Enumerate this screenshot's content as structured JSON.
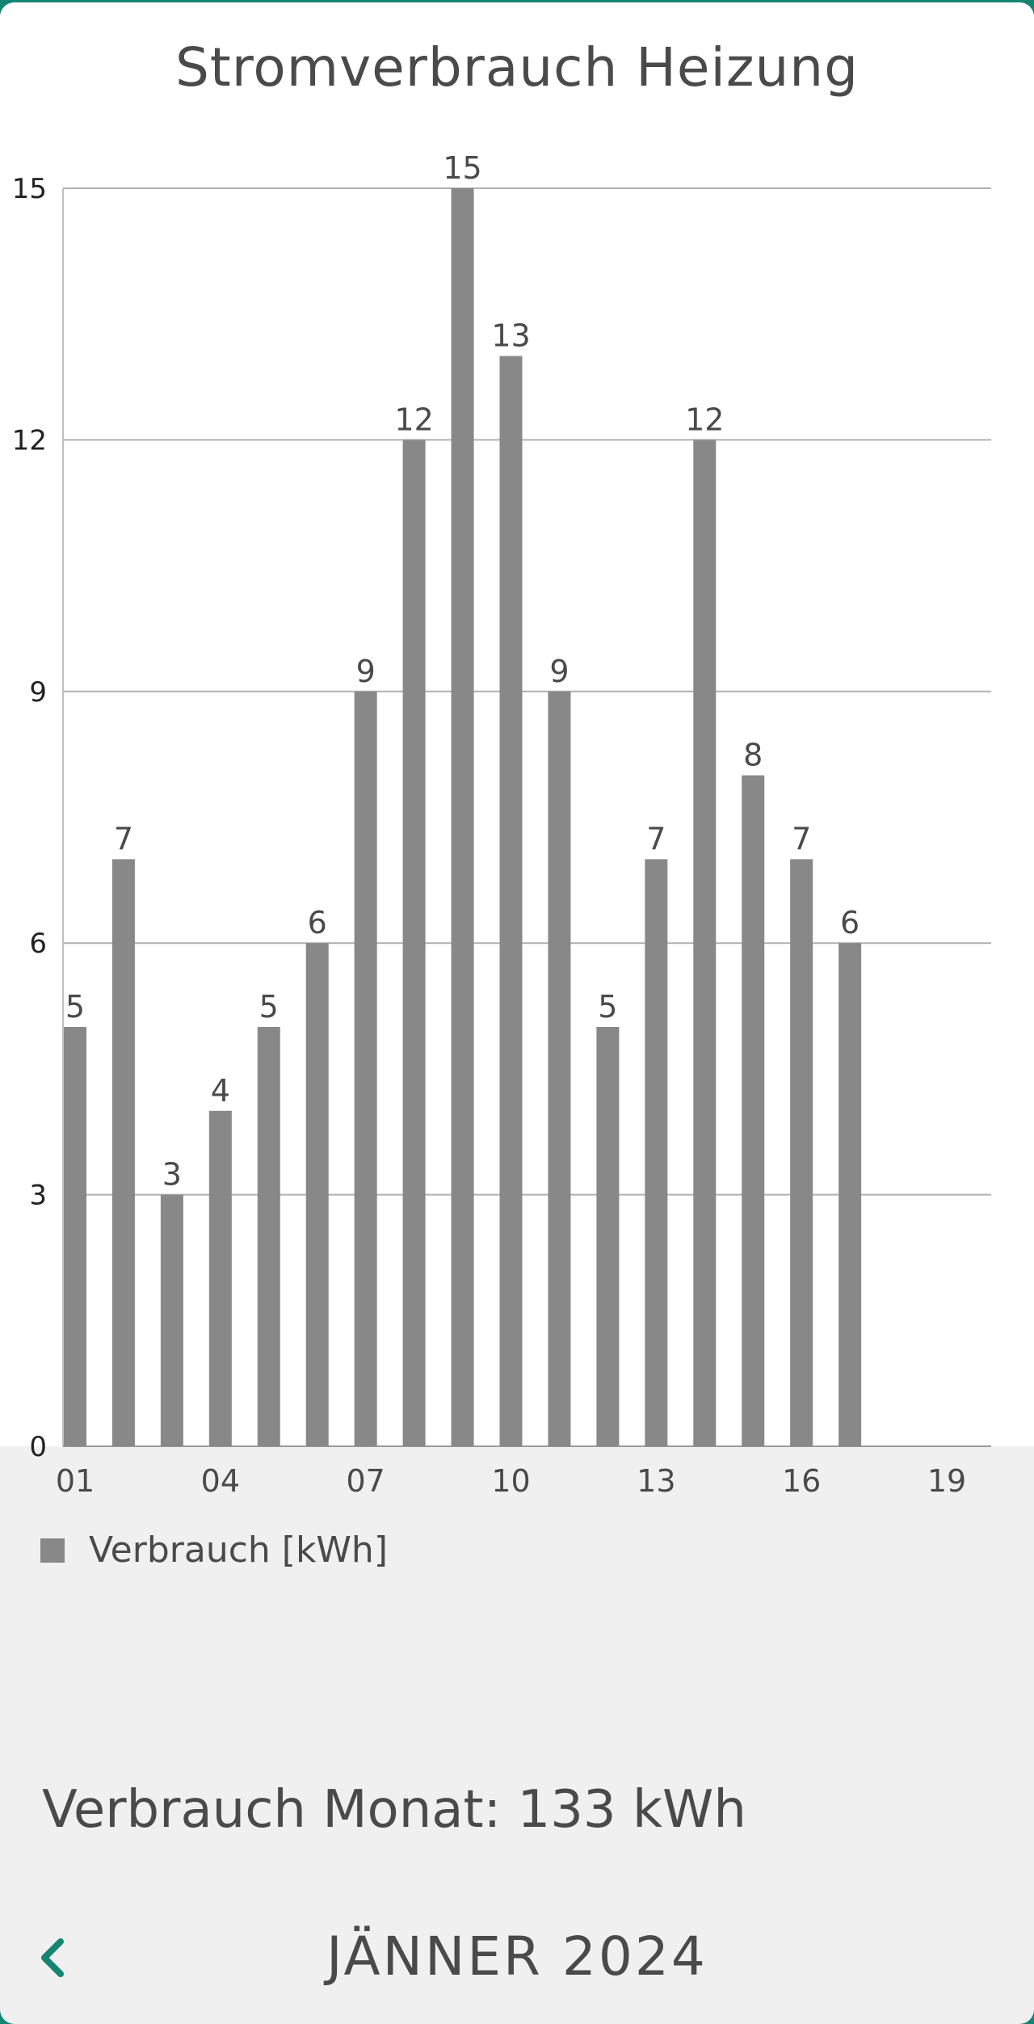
{
  "header": {
    "title": "Stromverbrauch Heizung"
  },
  "chart_data": {
    "type": "bar",
    "x": [
      1,
      2,
      3,
      4,
      5,
      6,
      7,
      8,
      9,
      10,
      11,
      12,
      13,
      14,
      15,
      16,
      17
    ],
    "values": [
      5,
      7,
      3,
      4,
      5,
      6,
      9,
      12,
      15,
      13,
      9,
      5,
      7,
      12,
      8,
      7,
      6
    ],
    "series": [
      {
        "name": "Verbrauch [kWh]",
        "values": [
          5,
          7,
          3,
          4,
          5,
          6,
          9,
          12,
          15,
          13,
          9,
          5,
          7,
          12,
          8,
          7,
          6
        ]
      }
    ],
    "xlim": [
      1,
      19
    ],
    "x_ticks": [
      "01",
      "04",
      "07",
      "10",
      "13",
      "16",
      "19"
    ],
    "x_tick_values": [
      1,
      4,
      7,
      10,
      13,
      16,
      19
    ],
    "ylim": [
      0,
      15
    ],
    "y_ticks": [
      0,
      3,
      6,
      9,
      12,
      15
    ],
    "grid": true,
    "legend_position": "bottom-left",
    "data_labels": true,
    "bar_color": "#888888"
  },
  "legend": {
    "label": "Verbrauch [kWh]"
  },
  "summary": {
    "text": "Verbrauch Monat: 133 kWh"
  },
  "footer": {
    "month": "JÄNNER 2024",
    "back_icon": "chevron-left-icon"
  },
  "colors": {
    "frame": "#158573",
    "accent": "#158573",
    "bar": "#888888",
    "text": "#4a4a4a"
  }
}
